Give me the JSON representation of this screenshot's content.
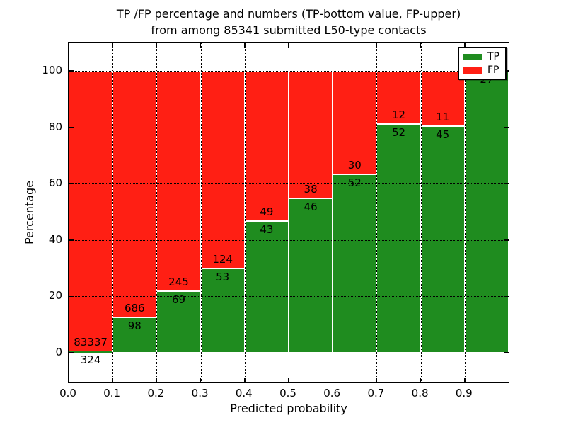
{
  "figure": {
    "title_line1": "TP /FP percentage and numbers (TP-bottom value, FP-upper)",
    "title_line2": "from among 85341 submitted L50-type contacts",
    "xlabel": "Predicted probability",
    "ylabel": "Percentage",
    "legend": {
      "position": "upper right",
      "items": [
        {
          "label": "TP"
        },
        {
          "label": "FP"
        }
      ]
    },
    "x_tick_labels": [
      "0.0",
      "0.1",
      "0.2",
      "0.3",
      "0.4",
      "0.5",
      "0.6",
      "0.7",
      "0.8",
      "0.9"
    ],
    "y_tick_labels": [
      "0",
      "20",
      "40",
      "60",
      "80",
      "100"
    ],
    "colors": {
      "tp_green": "#1f8c1f",
      "fp_red": "#ff1f14",
      "axis": "#000000",
      "grid": "#000000",
      "background": "#ffffff"
    }
  },
  "chart_data": {
    "type": "bar",
    "stacked": true,
    "title": "TP /FP percentage and numbers (TP-bottom value, FP-upper) from among 85341 submitted L50-type contacts",
    "xlabel": "Predicted probability",
    "ylabel": "Percentage",
    "total_submitted": 85341,
    "bins": [
      "0.0-0.1",
      "0.1-0.2",
      "0.2-0.3",
      "0.3-0.4",
      "0.4-0.5",
      "0.5-0.6",
      "0.6-0.7",
      "0.7-0.8",
      "0.8-0.9",
      "0.9-1.0"
    ],
    "categories": [
      "0.0",
      "0.1",
      "0.2",
      "0.3",
      "0.4",
      "0.5",
      "0.6",
      "0.7",
      "0.8",
      "0.9"
    ],
    "series": [
      {
        "name": "TP",
        "color": "#1f8c1f",
        "counts": [
          324,
          98,
          69,
          53,
          43,
          46,
          52,
          52,
          45,
          27
        ],
        "percent": [
          0.39,
          12.5,
          21.97,
          29.94,
          46.74,
          54.76,
          63.41,
          81.25,
          80.36,
          100
        ]
      },
      {
        "name": "FP",
        "color": "#ff1f14",
        "counts": [
          83337,
          686,
          245,
          124,
          49,
          38,
          30,
          12,
          11,
          null
        ],
        "percent": [
          99.61,
          87.5,
          78.03,
          70.06,
          53.26,
          45.24,
          36.59,
          18.75,
          19.64,
          0
        ]
      }
    ],
    "xlim": [
      0,
      1.0
    ],
    "ylim": [
      -10.6,
      109.8
    ],
    "y_ticks": [
      0,
      20,
      40,
      60,
      80,
      100
    ],
    "grid": "dotted",
    "legend_position": "upper right"
  }
}
